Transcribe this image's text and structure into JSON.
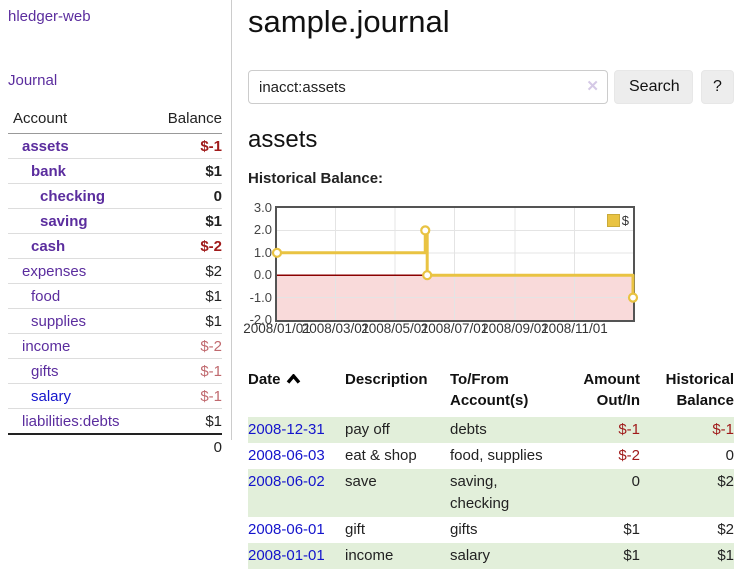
{
  "colors": {
    "purple_link": "#5b2d9e",
    "blue_link": "#1414cc",
    "neg_strong": "#a01b1b",
    "neg_soft": "#c0696e",
    "row_green": "#e2efda",
    "series_gold": "#e9c342",
    "clear_icon": "#d5c9e6",
    "zero_line": "#8b0000",
    "negative_region": "#f9dada",
    "grid": "#e4e4e4"
  },
  "app": {
    "brand": "hledger-web",
    "nav_journal": "Journal"
  },
  "sidebar": {
    "table_headers": {
      "account": "Account",
      "balance": "Balance"
    },
    "accounts": [
      {
        "label": "assets",
        "balance": "$-1",
        "depth": 0,
        "bold": true,
        "balance_class": "neg-strong",
        "link": "plink"
      },
      {
        "label": "bank",
        "balance": "$1",
        "depth": 1,
        "bold": true,
        "balance_class": "",
        "link": "plink"
      },
      {
        "label": "checking",
        "balance": "0",
        "depth": 2,
        "bold": true,
        "balance_class": "",
        "link": "plink"
      },
      {
        "label": "saving",
        "balance": "$1",
        "depth": 2,
        "bold": true,
        "balance_class": "",
        "link": "plink"
      },
      {
        "label": "cash",
        "balance": "$-2",
        "depth": 1,
        "bold": true,
        "balance_class": "neg-strong",
        "link": "plink"
      },
      {
        "label": "expenses",
        "balance": "$2",
        "depth": 0,
        "bold": false,
        "balance_class": "",
        "link": "plink"
      },
      {
        "label": "food",
        "balance": "$1",
        "depth": 1,
        "bold": false,
        "balance_class": "",
        "link": "plink"
      },
      {
        "label": "supplies",
        "balance": "$1",
        "depth": 1,
        "bold": false,
        "balance_class": "",
        "link": "plink"
      },
      {
        "label": "income",
        "balance": "$-2",
        "depth": 0,
        "bold": false,
        "balance_class": "neg-soft",
        "link": "plink"
      },
      {
        "label": "gifts",
        "balance": "$-1",
        "depth": 1,
        "bold": false,
        "balance_class": "neg-soft",
        "link": "plink"
      },
      {
        "label": "salary",
        "balance": "$-1",
        "depth": 1,
        "bold": false,
        "balance_class": "neg-soft",
        "link": "blink"
      },
      {
        "label": "liabilities:debts",
        "balance": "$1",
        "depth": 0,
        "bold": false,
        "balance_class": "",
        "link": "plink"
      }
    ],
    "total": "0"
  },
  "header": {
    "title": "sample.journal"
  },
  "search": {
    "value": "inacct:assets",
    "clear_icon": "✕",
    "search_button": "Search",
    "help_button": "?"
  },
  "section": {
    "heading": "assets",
    "chart_label": "Historical Balance:"
  },
  "chart_data": {
    "type": "line",
    "title": "Historical Balance:",
    "steps": true,
    "series": [
      {
        "name": "$",
        "points": [
          [
            "2008-01-01",
            1
          ],
          [
            "2008-06-01",
            2
          ],
          [
            "2008-06-02",
            2
          ],
          [
            "2008-06-03",
            0
          ],
          [
            "2008-12-31",
            -1
          ]
        ]
      }
    ],
    "x_range": [
      "2008-01-01",
      "2008-12-31"
    ],
    "ylim": [
      -2,
      3
    ],
    "yticks": [
      3.0,
      2.0,
      1.0,
      0.0,
      -1.0,
      -2.0
    ],
    "ytick_labels": [
      "3.0",
      "2.0",
      "1.0",
      "0.0",
      "-1.0",
      "-2.0"
    ],
    "xtick_labels": [
      "2008/01/01",
      "2008/03/01",
      "2008/05/01",
      "2008/07/01",
      "2008/09/01",
      "2008/11/01"
    ],
    "legend": {
      "label": "$",
      "position": "top-right"
    },
    "grid": true,
    "negative_region_shaded": true
  },
  "transactions": {
    "headers": [
      "Date",
      "Description",
      "To/From Account(s)",
      "Amount Out/In",
      "Historical Balance"
    ],
    "sort_column": "Date",
    "sort_direction": "ascending",
    "rows": [
      {
        "date": "2008-12-31",
        "description": "pay off",
        "accounts": "debts",
        "amount": "$-1",
        "amount_negative": true,
        "balance": "$-1",
        "balance_negative": true
      },
      {
        "date": "2008-06-03",
        "description": "eat & shop",
        "accounts": "food, supplies",
        "amount": "$-2",
        "amount_negative": true,
        "balance": "0",
        "balance_negative": false
      },
      {
        "date": "2008-06-02",
        "description": "save",
        "accounts": "saving, checking",
        "amount": "0",
        "amount_negative": false,
        "balance": "$2",
        "balance_negative": false
      },
      {
        "date": "2008-06-01",
        "description": "gift",
        "accounts": "gifts",
        "amount": "$1",
        "amount_negative": false,
        "balance": "$2",
        "balance_negative": false
      },
      {
        "date": "2008-01-01",
        "description": "income",
        "accounts": "salary",
        "amount": "$1",
        "amount_negative": false,
        "balance": "$1",
        "balance_negative": false
      }
    ]
  }
}
